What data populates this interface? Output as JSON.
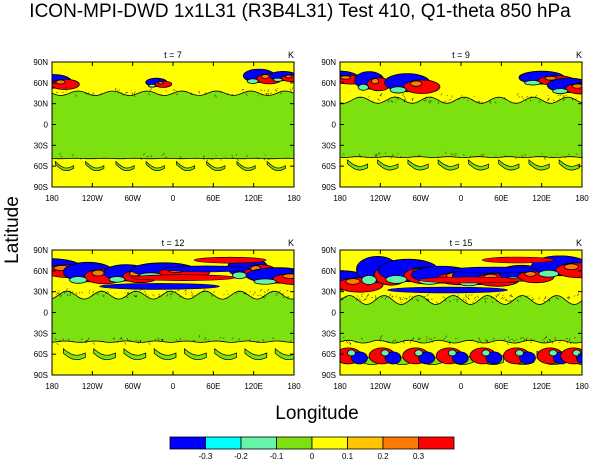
{
  "chart_data": {
    "type": "heatmap",
    "title": "ICON-MPI-DWD 1x1L31 (R3B4L31) Test 410, Q1-theta 850 hPa",
    "xlabel": "Longitude",
    "ylabel": "Latitude",
    "units": "K",
    "x_ticks": [
      "180",
      "120W",
      "60W",
      "0",
      "60E",
      "120E",
      "180"
    ],
    "y_ticks": [
      "90N",
      "60N",
      "30N",
      "0",
      "30S",
      "60S",
      "90S"
    ],
    "x_range": [
      -180,
      180
    ],
    "y_range": [
      -90,
      90
    ],
    "colorbar": {
      "levels": [
        "-0.3",
        "-0.2",
        "-0.1",
        "0",
        "0.1",
        "0.2",
        "0.3"
      ],
      "colors": [
        "#0000ff",
        "#00ffff",
        "#66f5a8",
        "#7ce10e",
        "#ffff00",
        "#ffc400",
        "#ff7a00",
        "#ff0000"
      ]
    },
    "panels": [
      {
        "label": "t = 7",
        "units_label": "K",
        "north_band": [
          45,
          85
        ],
        "south_band": [
          -65,
          -47
        ],
        "north_activity": 0.35,
        "south_activity": 0.15,
        "north_centers": [
          -170,
          -20,
          135,
          170
        ],
        "south_centers": []
      },
      {
        "label": "t = 9",
        "units_label": "K",
        "north_band": [
          35,
          85
        ],
        "south_band": [
          -62,
          -45
        ],
        "north_activity": 0.6,
        "south_activity": 0.35,
        "north_centers": [
          -175,
          -130,
          -70,
          130,
          170
        ],
        "south_centers": []
      },
      {
        "label": "t = 12",
        "units_label": "K",
        "north_band": [
          25,
          88
        ],
        "south_band": [
          -75,
          -40
        ],
        "north_activity": 0.85,
        "south_activity": 0.5,
        "north_centers": [
          -170,
          -115,
          -60,
          0,
          120,
          170
        ],
        "south_centers": []
      },
      {
        "label": "t = 15",
        "units_label": "K",
        "north_band": [
          18,
          90
        ],
        "south_band": [
          -85,
          -40
        ],
        "north_activity": 1.0,
        "south_activity": 1.0,
        "north_centers": [
          -165,
          -115,
          -65,
          -15,
          40,
          100,
          160
        ],
        "south_centers": [
          -160,
          -110,
          -60,
          -10,
          40,
          90,
          140,
          175
        ]
      }
    ]
  }
}
